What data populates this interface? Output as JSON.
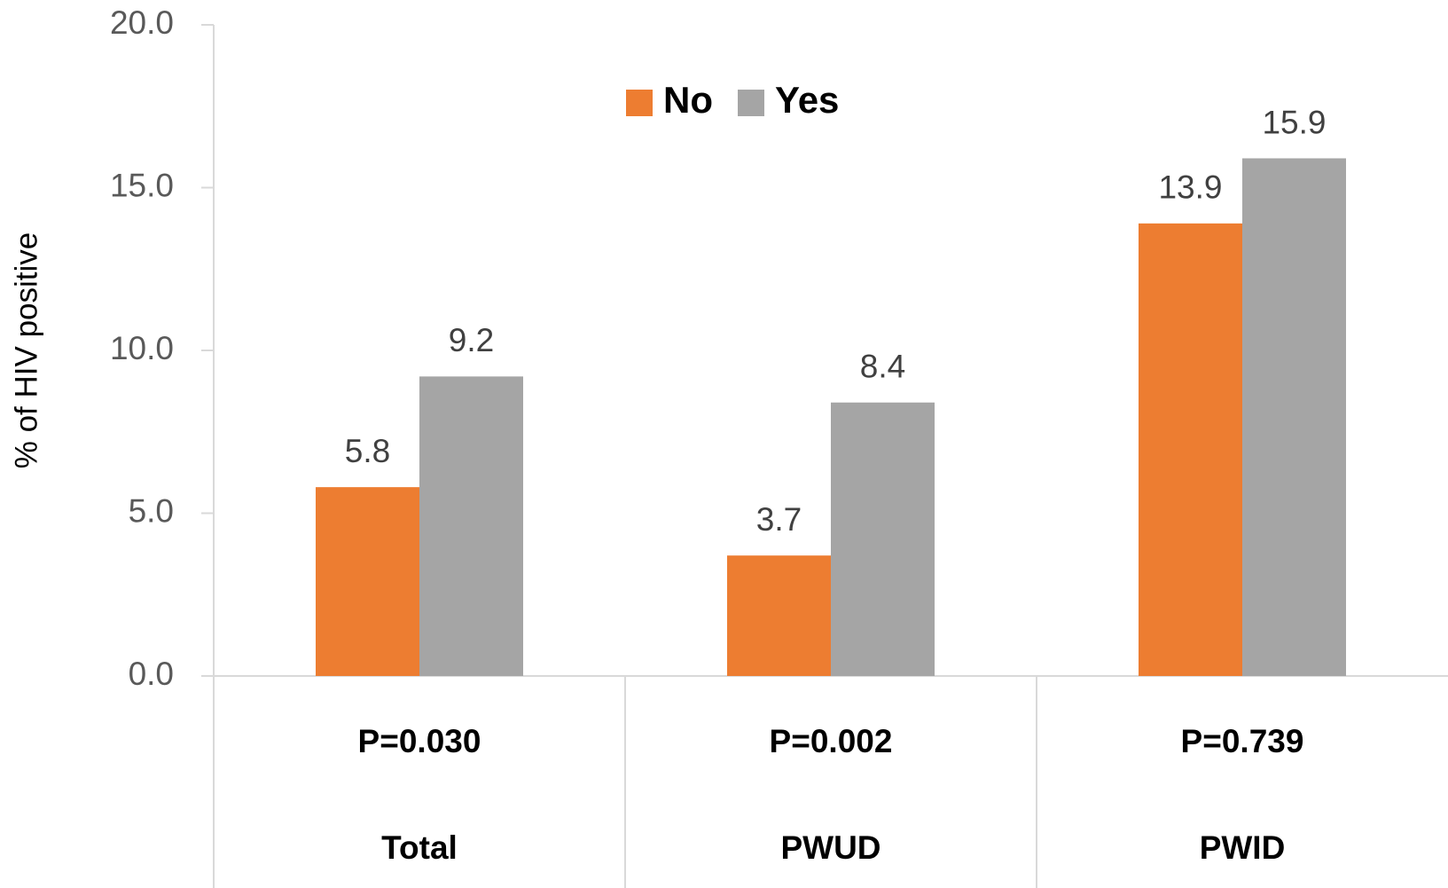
{
  "chart_data": {
    "type": "bar",
    "y_label": "% of HIV positive",
    "categories": [
      "Total",
      "PWUD",
      "PWID"
    ],
    "annotations": [
      "P=0.030",
      "P=0.002",
      "P=0.739"
    ],
    "series": [
      {
        "name": "No",
        "color": "#ed7d31",
        "values": [
          5.8,
          3.7,
          13.9
        ]
      },
      {
        "name": "Yes",
        "color": "#a5a5a5",
        "values": [
          9.2,
          8.4,
          15.9
        ]
      }
    ],
    "ylim": [
      0,
      20
    ],
    "yticks": [
      {
        "value": 0,
        "label": "0.0"
      },
      {
        "value": 5,
        "label": "5.0"
      },
      {
        "value": 10,
        "label": "10.0"
      },
      {
        "value": 15,
        "label": "15.0"
      },
      {
        "value": 20,
        "label": "20.0"
      }
    ],
    "grid": false,
    "legend": "top"
  }
}
